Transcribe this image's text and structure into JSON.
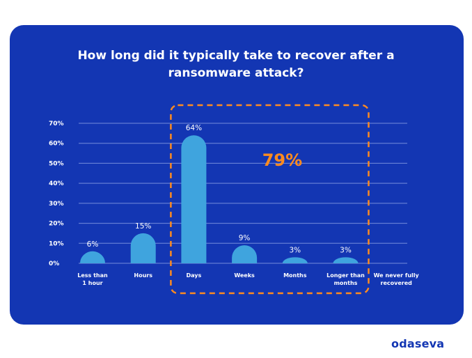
{
  "title": {
    "line1": "How long did it typically take to recover after a",
    "line2": "ransomware attack?"
  },
  "colors": {
    "card": "#1336b3",
    "bar": "#3fa4de",
    "grid": "#8ea2e6",
    "highlight": "#ff8b1f",
    "text": "#ffffff",
    "brand": "#1336b3"
  },
  "brand": "odaseva",
  "chart_data": {
    "type": "bar",
    "title": "How long did it typically take to recover after a ransomware attack?",
    "categories": [
      [
        "Less than",
        "1 hour"
      ],
      [
        "Hours"
      ],
      [
        "Days"
      ],
      [
        "Weeks"
      ],
      [
        "Months"
      ],
      [
        "Longer than",
        "months"
      ],
      [
        "We never fully",
        "recovered"
      ]
    ],
    "values": [
      6,
      15,
      64,
      9,
      3,
      3,
      0
    ],
    "value_labels": [
      "6%",
      "15%",
      "64%",
      "9%",
      "3%",
      "3%",
      ""
    ],
    "ylim": [
      0,
      70
    ],
    "yticks": [
      {
        "value": 0,
        "label": "0%"
      },
      {
        "value": 10,
        "label": "10%"
      },
      {
        "value": 20,
        "label": "20%"
      },
      {
        "value": 30,
        "label": "30%"
      },
      {
        "value": 40,
        "label": "40%"
      },
      {
        "value": 50,
        "label": "50%"
      },
      {
        "value": 60,
        "label": "60%"
      },
      {
        "value": 70,
        "label": "70%"
      }
    ],
    "grid": true,
    "highlight": {
      "label": "79%",
      "from_category": 2,
      "to_category": 5
    }
  }
}
